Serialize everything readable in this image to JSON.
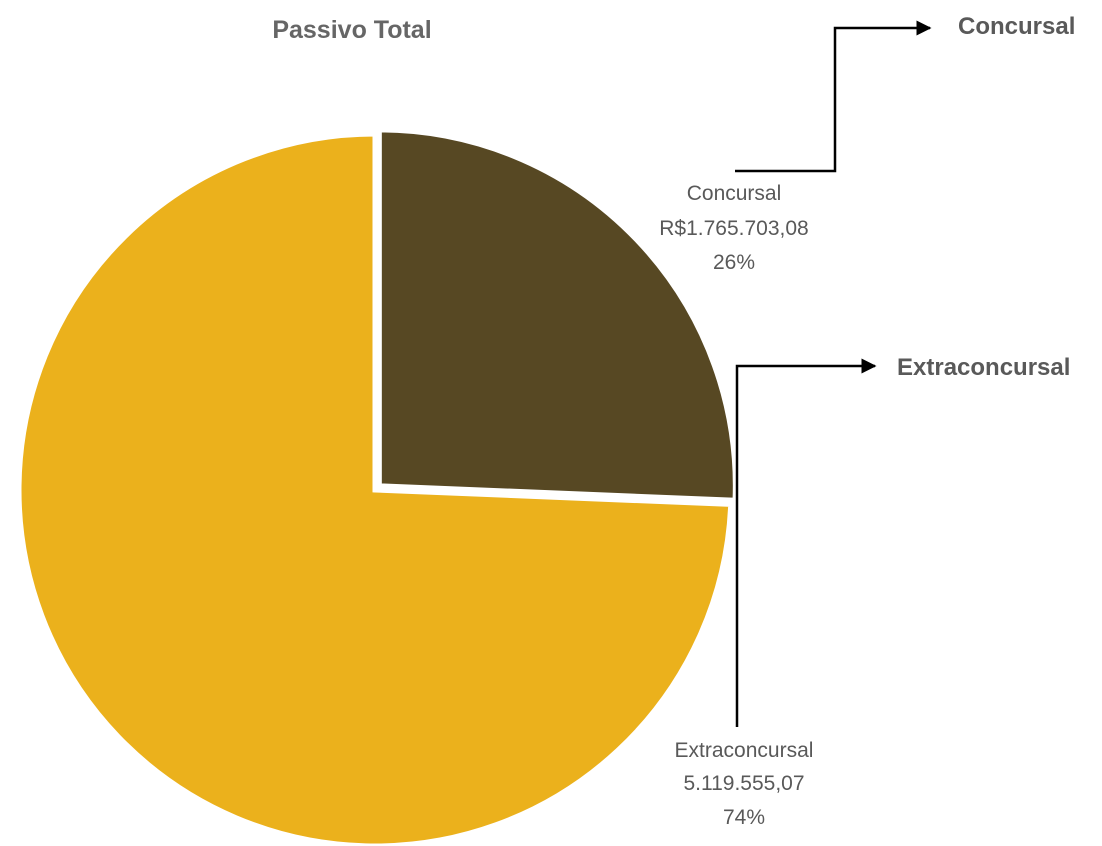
{
  "chart_data": {
    "type": "pie",
    "title": "Passivo Total",
    "colors": {
      "Concursal": "#574823",
      "Extraconcursal": "#EBB11C"
    },
    "slices": [
      {
        "name": "Concursal",
        "value": 1765703.08,
        "value_label": "R$1.765.703,08",
        "percent": 26,
        "percent_label": "26%",
        "color": "#574823"
      },
      {
        "name": "Extraconcursal",
        "value": 5119555.07,
        "value_label": "5.119.555,07",
        "percent": 74,
        "percent_label": "74%",
        "color": "#EBB11C"
      }
    ],
    "legend": {
      "placement": "right",
      "entries": [
        "Concursal",
        "Extraconcursal"
      ]
    }
  }
}
